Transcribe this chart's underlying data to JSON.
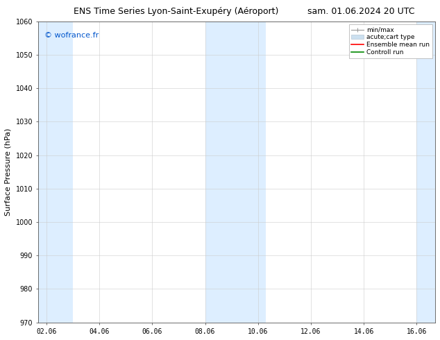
{
  "title_left": "ENS Time Series Lyon-Saint-Exupéry (Aéroport)",
  "title_right": "sam. 01.06.2024 20 UTC",
  "ylabel": "Surface Pressure (hPa)",
  "ylim": [
    970,
    1060
  ],
  "yticks": [
    970,
    980,
    990,
    1000,
    1010,
    1020,
    1030,
    1040,
    1050,
    1060
  ],
  "xtick_labels": [
    "02.06",
    "04.06",
    "06.06",
    "08.06",
    "10.06",
    "12.06",
    "14.06",
    "16.06"
  ],
  "xtick_positions": [
    0,
    2,
    4,
    6,
    8,
    10,
    12,
    14
  ],
  "xlim_start": -0.3,
  "xlim_end": 14.7,
  "watermark": "© wofrance.fr",
  "watermark_color": "#0055cc",
  "bg_color": "#ffffff",
  "plot_bg_color": "#ffffff",
  "shaded_bands": [
    {
      "x_start": -0.3,
      "x_end": 1.0,
      "color": "#ddeeff"
    },
    {
      "x_start": 6.0,
      "x_end": 8.3,
      "color": "#ddeeff"
    },
    {
      "x_start": 14.0,
      "x_end": 14.7,
      "color": "#ddeeff"
    }
  ],
  "legend_labels": [
    "min/max",
    "acute;cart type",
    "Ensemble mean run",
    "Controll run"
  ],
  "legend_colors_line": [
    "#aaaaaa",
    null,
    "#ff0000",
    "#008800"
  ],
  "title_fontsize": 9,
  "axis_label_fontsize": 8,
  "tick_fontsize": 7,
  "watermark_fontsize": 8,
  "legend_fontsize": 6.5
}
